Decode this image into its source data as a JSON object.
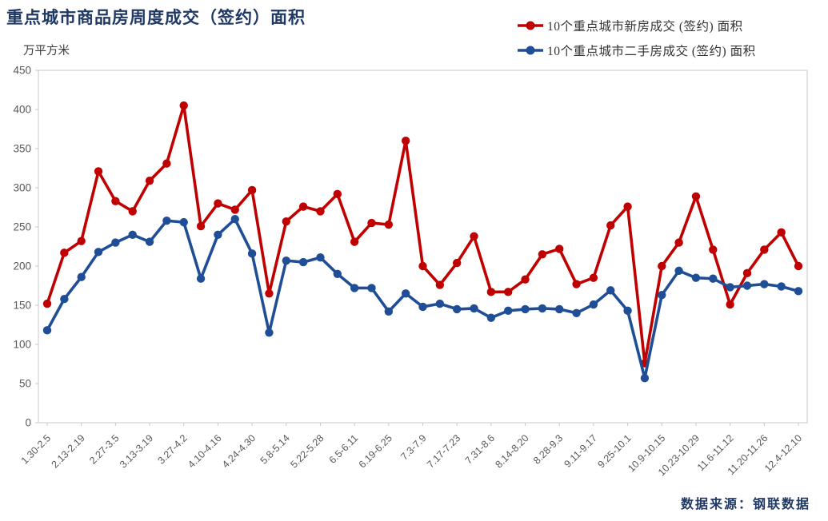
{
  "chart_data": {
    "type": "line",
    "title": "重点城市商品房周度成交（签约）面积",
    "ylabel": "万平方米",
    "xlabel": "",
    "source": "数据来源：钢联数据",
    "legend_position": "top-right",
    "grid": "border-only",
    "y_axis": {
      "min": 0,
      "max": 450,
      "step": 50,
      "ticks": [
        0,
        50,
        100,
        150,
        200,
        250,
        300,
        350,
        400,
        450
      ]
    },
    "label_every_n_points": 2,
    "x_labels": [
      "1.30-2.5",
      "2.13-2.19",
      "2.27-3.5",
      "3.13-3.19",
      "3.27-4.2",
      "4.10-4.16",
      "4.24-4.30",
      "5.8-5.14",
      "5.22-5.28",
      "6.5-6.11",
      "6.19-6.25",
      "7.3-7.9",
      "7.17-7.23",
      "7.31-8.6",
      "8.14-8.20",
      "8.28-9.3",
      "9.11-9.17",
      "9.25-10.1",
      "10.9-10.15",
      "10.23-10.29",
      "11.6-11.12",
      "11.20-11.26",
      "12.4-12.10"
    ],
    "colors": {
      "new_homes": "#C00000",
      "secondhand_homes": "#1F4E96",
      "title_text": "#1F3864",
      "axis_text": "#595959",
      "grid_line": "#C9C9C9",
      "legend_text": "#333333"
    },
    "series": [
      {
        "id": "new-homes",
        "name": "10个重点城市新房成交 (签约) 面积",
        "color": "#C00000",
        "values": [
          152,
          217,
          232,
          321,
          283,
          270,
          309,
          331,
          405,
          251,
          280,
          272,
          297,
          165,
          257,
          276,
          270,
          292,
          231,
          255,
          253,
          360,
          200,
          176,
          204,
          238,
          167,
          167,
          183,
          215,
          222,
          177,
          185,
          252,
          276,
          76,
          200,
          230,
          289,
          221,
          151,
          191,
          221,
          243,
          200
        ]
      },
      {
        "id": "secondhand-homes",
        "name": "10个重点城市二手房成交 (签约) 面积",
        "color": "#1F4E96",
        "values": [
          118,
          158,
          186,
          218,
          230,
          240,
          231,
          258,
          256,
          184,
          240,
          260,
          216,
          115,
          207,
          205,
          211,
          190,
          172,
          172,
          142,
          165,
          148,
          152,
          145,
          146,
          134,
          143,
          145,
          146,
          145,
          140,
          151,
          169,
          143,
          57,
          163,
          194,
          185,
          184,
          173,
          175,
          177,
          174,
          168
        ]
      }
    ]
  }
}
